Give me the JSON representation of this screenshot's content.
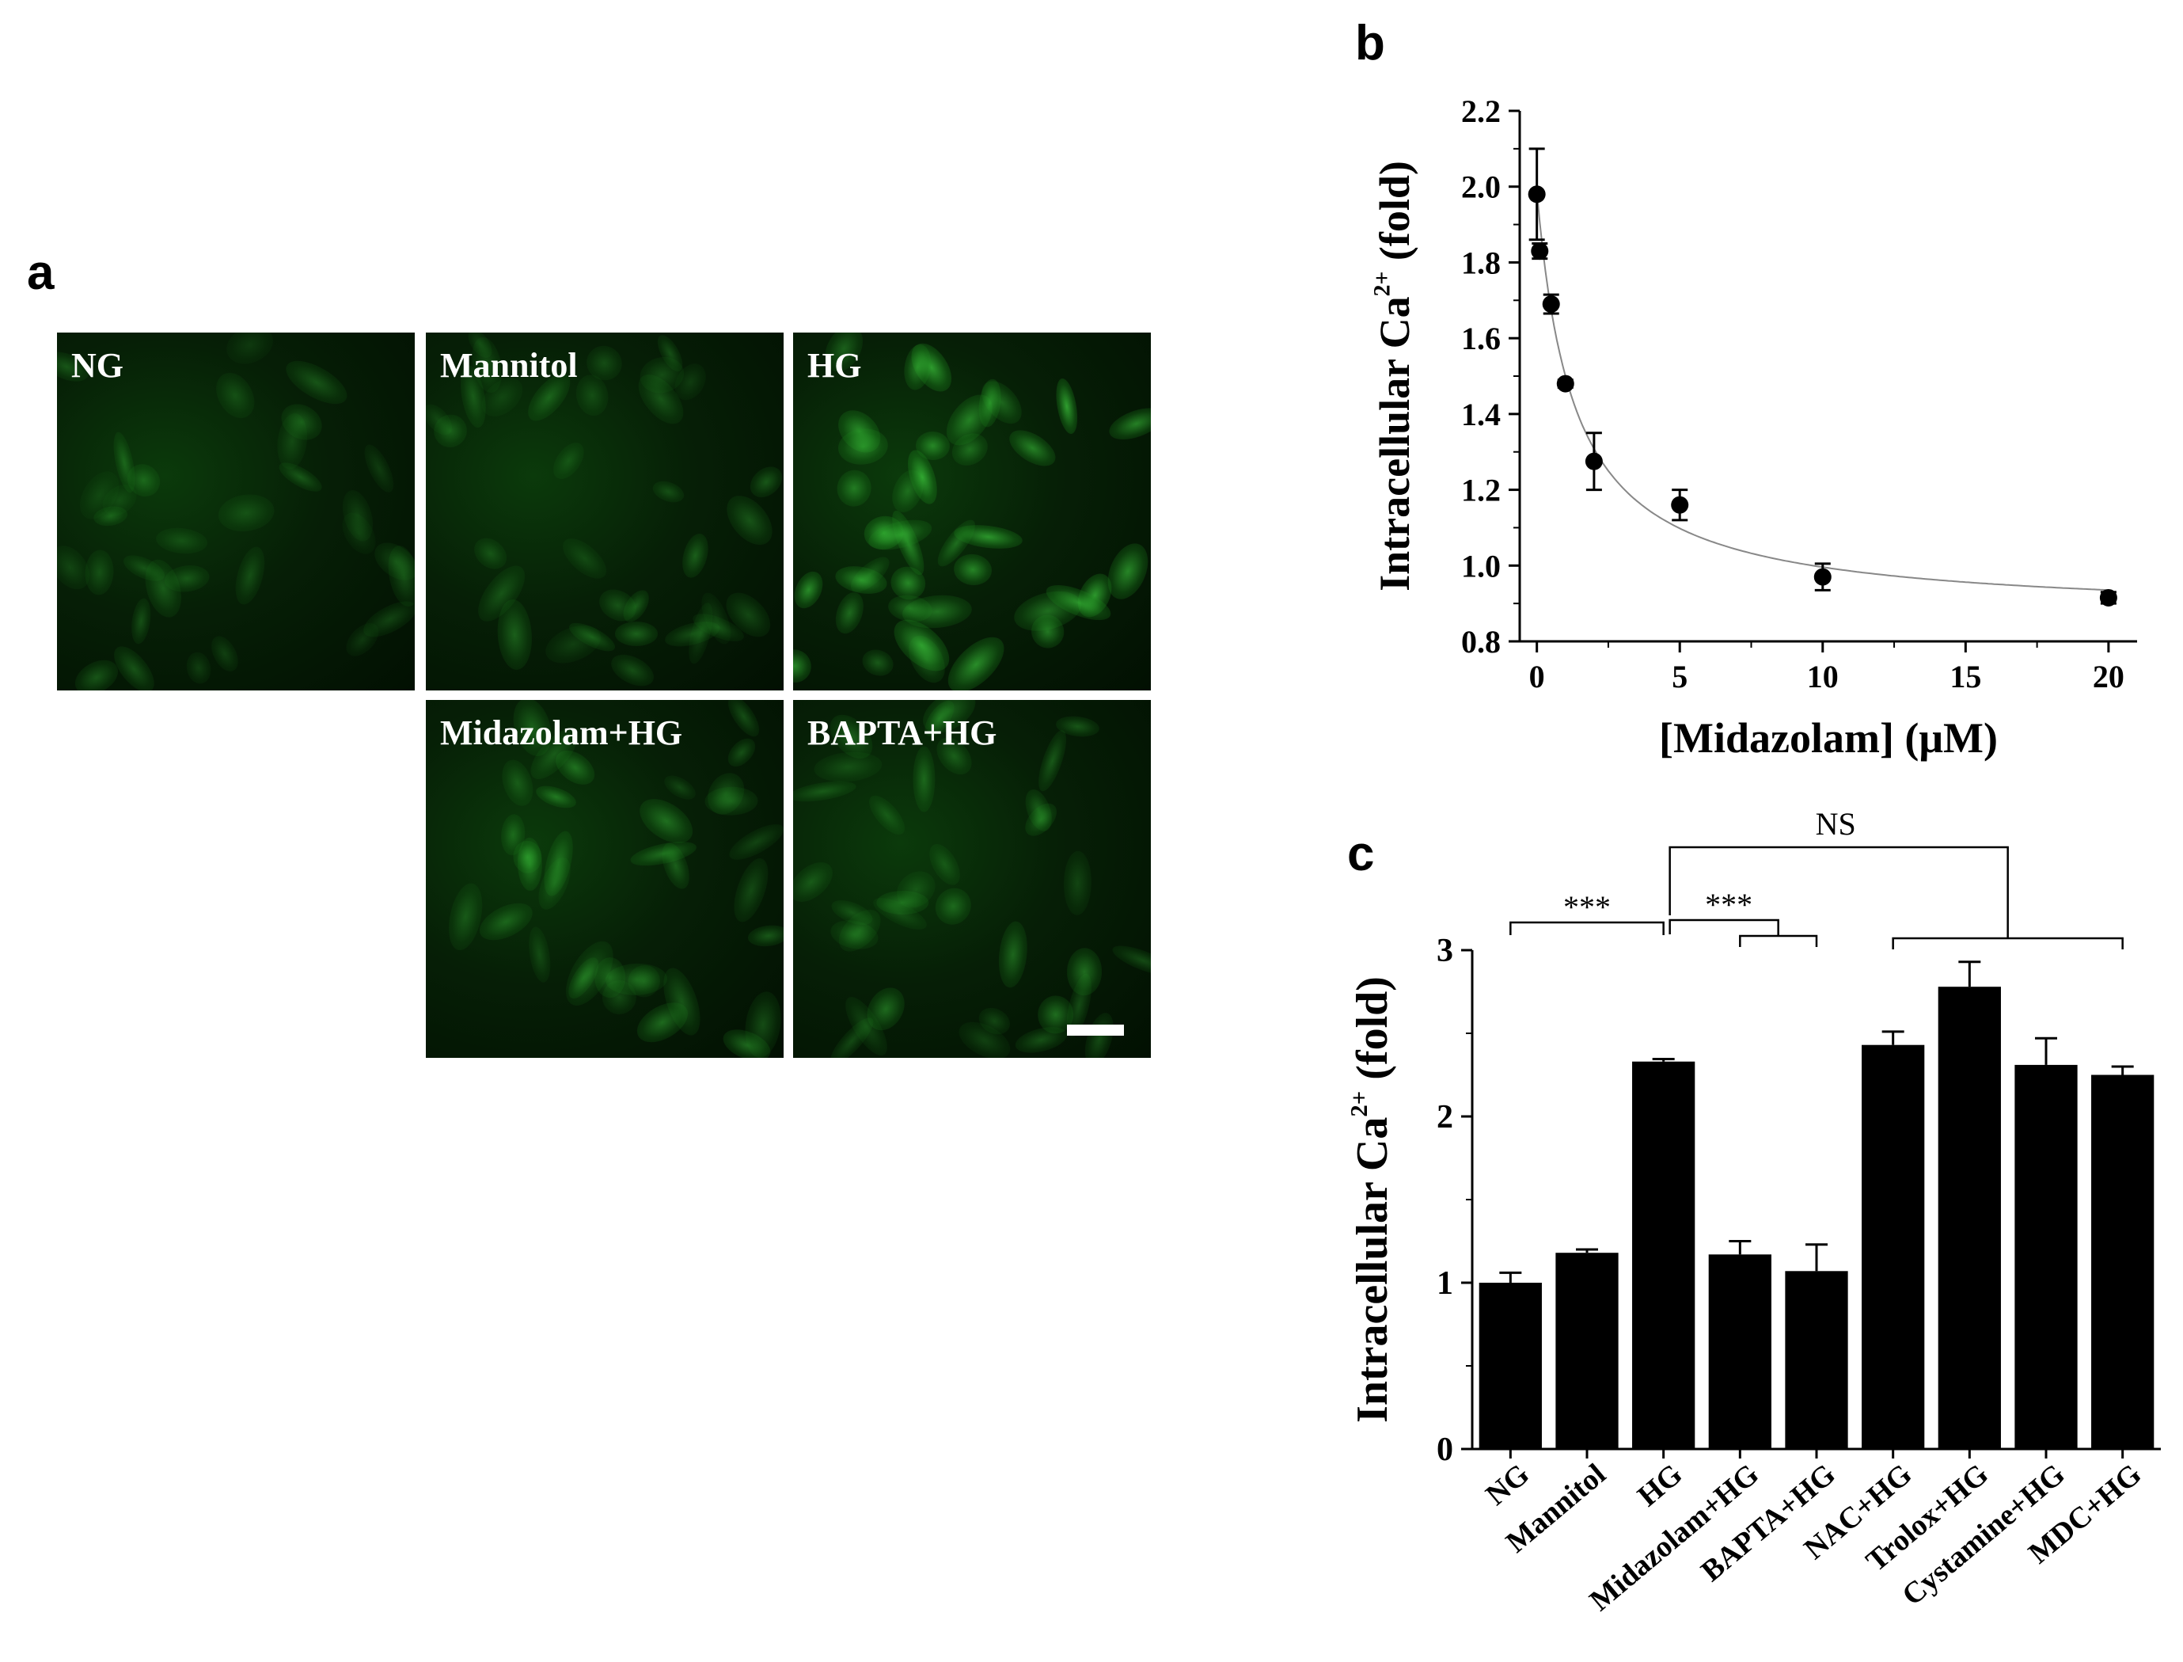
{
  "panel_labels": {
    "a": "a",
    "b": "b",
    "c": "c"
  },
  "micrographs": [
    {
      "label": "NG",
      "brightness": 0.45
    },
    {
      "label": "Mannitol",
      "brightness": 0.5
    },
    {
      "label": "HG",
      "brightness": 0.95
    },
    {
      "label": "Midazolam+HG",
      "brightness": 0.6
    },
    {
      "label": "BAPTA+HG",
      "brightness": 0.6
    }
  ],
  "colors": {
    "fluorescence": "#1fae1f",
    "marker": "#000000",
    "bar": "#000000",
    "fit_line": "#888888"
  },
  "chart_data": [
    {
      "type": "scatter",
      "panel": "b",
      "xlabel": "[Midazolam] (μM)",
      "ylabel_parts": [
        "Intracellular Ca",
        "2+",
        " (fold)"
      ],
      "xlim": [
        -0.6,
        21
      ],
      "ylim": [
        0.8,
        2.2
      ],
      "xticks": [
        0,
        5,
        10,
        15,
        20
      ],
      "yticks": [
        0.8,
        1.0,
        1.2,
        1.4,
        1.6,
        1.8,
        2.0,
        2.2
      ],
      "ytick_labels": [
        "0.8",
        "1.0",
        "1.2",
        "1.4",
        "1.6",
        "1.8",
        "2.0",
        "2.2"
      ],
      "points": [
        {
          "x": 0,
          "y": 1.98,
          "err": 0.12
        },
        {
          "x": 0.1,
          "y": 1.83,
          "err": 0.02
        },
        {
          "x": 0.5,
          "y": 1.69,
          "err": 0.025
        },
        {
          "x": 1,
          "y": 1.48,
          "err": 0.01
        },
        {
          "x": 2,
          "y": 1.275,
          "err": 0.075
        },
        {
          "x": 5,
          "y": 1.16,
          "err": 0.04
        },
        {
          "x": 10,
          "y": 0.97,
          "err": 0.035
        },
        {
          "x": 20,
          "y": 0.915,
          "err": 0.015
        }
      ],
      "fit": {
        "bottom": 0.867,
        "amplitude": 1.12,
        "ec50": 1.3
      },
      "grid": false
    },
    {
      "type": "bar",
      "panel": "c",
      "ylabel_parts": [
        "Intracellular Ca",
        "2+",
        " (fold)"
      ],
      "ylim": [
        0,
        3
      ],
      "yticks": [
        0,
        1,
        2,
        3
      ],
      "categories": [
        "NG",
        "Mannitol",
        "HG",
        "Midazolam+HG",
        "BAPTA+HG",
        "NAC+HG",
        "Trolox+HG",
        "Cystamine+HG",
        "MDC+HG"
      ],
      "values": [
        1.0,
        1.18,
        2.33,
        1.17,
        1.07,
        2.43,
        2.78,
        2.31,
        2.25
      ],
      "errors": [
        0.06,
        0.02,
        0.015,
        0.08,
        0.16,
        0.08,
        0.15,
        0.16,
        0.05
      ],
      "significance": [
        {
          "label": "***",
          "from": 0,
          "to": 2
        },
        {
          "label": "***",
          "from": 2,
          "to": [
            3,
            4
          ]
        },
        {
          "label": "NS",
          "from": 2,
          "to": [
            5,
            6,
            7,
            8
          ]
        }
      ],
      "grid": false
    }
  ]
}
